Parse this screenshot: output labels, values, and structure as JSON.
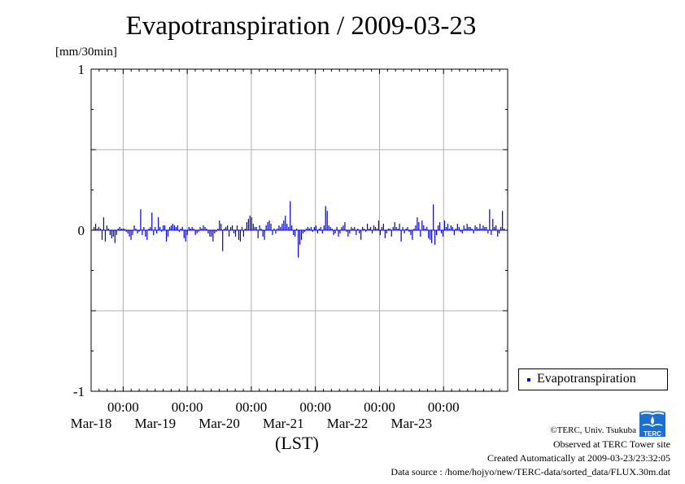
{
  "title": "Evapotranspiration / 2009-03-23",
  "y_unit": "[mm/30min]",
  "x_axis_label": "(LST)",
  "legend": {
    "label": "Evapotranspiration",
    "color": "#0000cc"
  },
  "credits": {
    "copyright": "©TERC, Univ. Tsukuba",
    "site": "Observed at TERC Tower site",
    "created": "Created Automatically at 2009-03-23/23:32:05",
    "source": "Data source : /home/hojyo/new/TERC-data/sorted_data/FLUX.30m.dat"
  },
  "logo_text": "TERC",
  "chart_data": {
    "type": "bar",
    "title": "Evapotranspiration / 2009-03-23",
    "ylabel": "[mm/30min]",
    "xlabel": "(LST)",
    "ylim": [
      -1,
      1
    ],
    "xlim_days": [
      "Mar-17 12:00",
      "Mar-23 24:00"
    ],
    "y_ticks": [
      "1",
      "0",
      "-1"
    ],
    "x_ticks": [
      {
        "time": "00:00",
        "date": "Mar-18"
      },
      {
        "time": "00:00",
        "date": "Mar-19"
      },
      {
        "time": "00:00",
        "date": "Mar-20"
      },
      {
        "time": "00:00",
        "date": "Mar-21"
      },
      {
        "time": "00:00",
        "date": "Mar-22"
      },
      {
        "time": "00:00",
        "date": "Mar-23"
      }
    ],
    "grid": true,
    "legend_position": "bottom-right outside",
    "series": [
      {
        "name": "Evapotranspiration",
        "color": "#0000cc",
        "interval_minutes": 30,
        "values": [
          0.02,
          0.04,
          0.01,
          0.02,
          0.01,
          -0.06,
          0.08,
          -0.07,
          0.03,
          0.01,
          -0.03,
          -0.05,
          -0.04,
          -0.08,
          -0.03,
          0.01,
          0.02,
          0.01,
          0.01,
          0.01,
          -0.01,
          -0.02,
          -0.04,
          -0.06,
          -0.03,
          0.03,
          0.01,
          -0.02,
          -0.01,
          0.13,
          -0.03,
          0.02,
          -0.04,
          -0.06,
          0.01,
          0.02,
          0.11,
          -0.03,
          0.02,
          -0.02,
          0.08,
          0.02,
          -0.01,
          0.03,
          0.03,
          -0.07,
          -0.04,
          0.02,
          0.03,
          0.04,
          0.03,
          0.02,
          0.03,
          -0.01,
          0.01,
          0.02,
          -0.05,
          -0.07,
          -0.03,
          0.02,
          0.01,
          0.02,
          0.01,
          -0.03,
          -0.02,
          -0.01,
          0.02,
          0.01,
          0.03,
          0.02,
          0.01,
          -0.02,
          -0.04,
          -0.04,
          -0.07,
          -0.02,
          -0.01,
          0.01,
          0.06,
          0.04,
          -0.13,
          0.01,
          0.02,
          0.03,
          -0.04,
          0.02,
          0.03,
          -0.02,
          -0.04,
          0.03,
          -0.06,
          -0.07,
          0.02,
          -0.04,
          0.01,
          0.05,
          0.07,
          0.09,
          0.08,
          0.04,
          0.02,
          0.02,
          -0.05,
          0.03,
          0.01,
          -0.04,
          -0.06,
          0.03,
          0.05,
          0.06,
          0.04,
          -0.03,
          0.01,
          -0.02,
          0.01,
          0.03,
          0.02,
          0.04,
          0.06,
          0.09,
          0.04,
          0.02,
          0.18,
          0.03,
          -0.03,
          -0.04,
          0.01,
          -0.17,
          -0.09,
          -0.06,
          -0.02,
          -0.01,
          0.01,
          0.02,
          0.01,
          0.02,
          -0.01,
          0.02,
          0.03,
          -0.02,
          0.01,
          0.02,
          -0.02,
          0.03,
          0.15,
          0.12,
          0.03,
          0.02,
          0.01,
          -0.03,
          -0.02,
          0.02,
          -0.04,
          -0.02,
          0.02,
          0.03,
          0.05,
          -0.01,
          -0.04,
          -0.02,
          0.02,
          0.01,
          0.02,
          -0.03,
          0.01,
          -0.02,
          -0.06,
          0.02,
          0.01,
          -0.01,
          0.04,
          0.01,
          0.02,
          -0.02,
          0.03,
          0.02,
          0.01,
          0.06,
          -0.03,
          0.02,
          0.04,
          -0.05,
          -0.02,
          0.01,
          0.01,
          -0.04,
          0.02,
          0.05,
          0.02,
          0.01,
          0.04,
          -0.07,
          0.02,
          -0.02,
          0.01,
          0.02,
          -0.01,
          -0.03,
          -0.06,
          0.01,
          0.03,
          0.08,
          0.05,
          -0.04,
          0.06,
          0.03,
          0.01,
          0.02,
          -0.05,
          -0.06,
          -0.08,
          0.16,
          -0.09,
          -0.03,
          0.03,
          0.05,
          -0.02,
          -0.04,
          0.06,
          0.02,
          0.04,
          0.01,
          0.03,
          0.02,
          -0.03,
          0.01,
          0.04,
          0.02,
          -0.01,
          -0.02,
          0.03,
          0.01,
          0.04,
          0.02,
          0.02,
          0.01,
          -0.02,
          0.03,
          0.02,
          0.01,
          0.04,
          0.01,
          0.03,
          0.02,
          0.02,
          -0.02,
          0.13,
          -0.03,
          0.07,
          0.02,
          0.03,
          -0.04,
          -0.02,
          0.02,
          0.12,
          0.01
        ]
      }
    ]
  }
}
